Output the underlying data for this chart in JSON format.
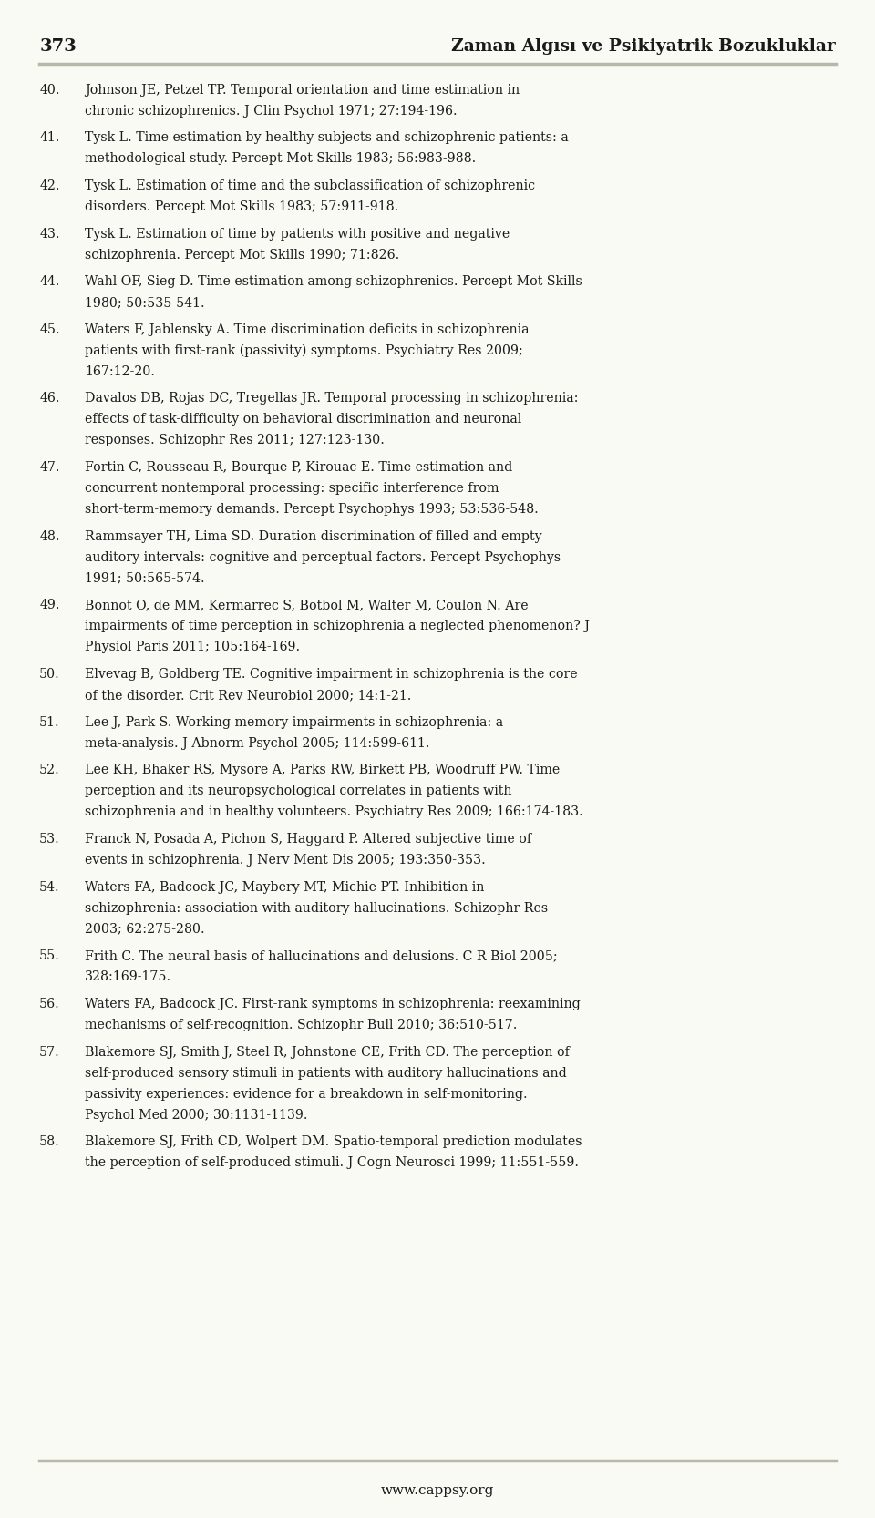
{
  "page_number": "373",
  "header_title": "Zaman Algısı ve Psikiyatrik Bozukluklar",
  "footer_text": "www.cappsy.org",
  "background_color": "#FAFAF5",
  "header_line_color": "#B8B8A8",
  "footer_line_color": "#B8B8A8",
  "text_color": "#1a1a1a",
  "font_size": 10.5,
  "references": [
    {
      "number": "40.",
      "text": "Johnson JE, Petzel TP. Temporal orientation and time estimation in chronic schizophrenics. J Clin Psychol 1971; 27:194-196."
    },
    {
      "number": "41.",
      "text": "Tysk L. Time estimation by healthy subjects and schizophrenic patients: a methodological study. Percept Mot Skills 1983; 56:983-988."
    },
    {
      "number": "42.",
      "text": "Tysk L. Estimation of time and the subclassification of schizophrenic disorders. Percept Mot Skills 1983; 57:911-918."
    },
    {
      "number": "43.",
      "text": "Tysk L. Estimation of time by patients with positive and negative schizophrenia. Percept Mot Skills 1990; 71:826."
    },
    {
      "number": "44.",
      "text": "Wahl OF, Sieg D. Time estimation among schizophrenics. Percept Mot Skills 1980; 50:535-541."
    },
    {
      "number": "45.",
      "text": "Waters F, Jablensky A. Time discrimination deficits in schizophrenia patients with first-rank (passivity) symptoms. Psychiatry Res 2009; 167:12-20."
    },
    {
      "number": "46.",
      "text": "Davalos DB, Rojas DC, Tregellas JR. Temporal processing in schizophrenia: effects of task-difficulty on behavioral discrimination and neuronal responses. Schizophr Res 2011; 127:123-130."
    },
    {
      "number": "47.",
      "text": "Fortin C, Rousseau R, Bourque P, Kirouac E. Time estimation and concurrent nontemporal processing: specific interference from short-term-memory demands. Percept Psychophys 1993; 53:536-548."
    },
    {
      "number": "48.",
      "text": "Rammsayer TH, Lima SD. Duration discrimination of filled and empty auditory intervals: cognitive and perceptual factors. Percept Psychophys 1991; 50:565-574."
    },
    {
      "number": "49.",
      "text": "Bonnot O, de MM, Kermarrec S, Botbol M, Walter M, Coulon N. Are impairments of time perception in schizophrenia a neglected phenomenon? J Physiol Paris 2011; 105:164-169."
    },
    {
      "number": "50.",
      "text": "Elvevag B, Goldberg TE. Cognitive impairment in schizophrenia is the core of the disorder. Crit Rev Neurobiol 2000; 14:1-21."
    },
    {
      "number": "51.",
      "text": "Lee J, Park S. Working memory impairments in schizophrenia: a meta-analysis. J Abnorm Psychol 2005; 114:599-611."
    },
    {
      "number": "52.",
      "text": "Lee KH, Bhaker RS, Mysore A, Parks RW, Birkett PB, Woodruff PW. Time perception and its neuropsychological correlates in patients with schizophrenia and in healthy volunteers. Psychiatry Res 2009; 166:174-183."
    },
    {
      "number": "53.",
      "text": "Franck N, Posada A, Pichon S, Haggard P. Altered subjective time of events in schizophrenia. J Nerv Ment Dis 2005; 193:350-353."
    },
    {
      "number": "54.",
      "text": "Waters FA, Badcock JC, Maybery MT, Michie PT. Inhibition in schizophrenia: association with auditory hallucinations. Schizophr Res 2003; 62:275-280."
    },
    {
      "number": "55.",
      "text": "Frith C. The neural basis of hallucinations and delusions. C R Biol 2005; 328:169-175."
    },
    {
      "number": "56.",
      "text": "Waters FA, Badcock JC. First-rank symptoms in schizophrenia: reexamining mechanisms of self-recognition. Schizophr Bull 2010; 36:510-517."
    },
    {
      "number": "57.",
      "text": "Blakemore SJ, Smith J, Steel R, Johnstone CE, Frith CD. The perception of self-produced sensory stimuli in patients with auditory hallucinations and passivity experiences: evidence for a breakdown in self-monitoring. Psychol Med 2000; 30:1131-1139."
    },
    {
      "number": "58.",
      "text": "Blakemore SJ, Frith CD, Wolpert DM. Spatio-temporal prediction modulates the perception of self-produced stimuli. J Cogn Neurosci 1999; 11:551-559."
    }
  ]
}
